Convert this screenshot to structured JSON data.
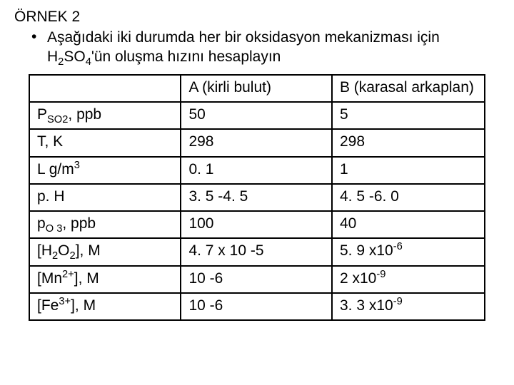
{
  "title": "ÖRNEK 2",
  "bullet": "•",
  "bullet_text_html": "Aşağıdaki iki durumda her bir oksidasyon mekanizması için H<sub>2</sub>SO<sub>4</sub>'ün oluşma hızını hesaplayın",
  "table": {
    "header": [
      "",
      "A (kirli bulut)",
      "B (karasal arkaplan)"
    ],
    "rows": [
      [
        "P<sub>SO2</sub>, ppb",
        "50",
        "5"
      ],
      [
        "T, K",
        "298",
        "298"
      ],
      [
        "L g/m<sup>3</sup>",
        "0. 1",
        "1"
      ],
      [
        "p. H",
        "3. 5 -4. 5",
        "4. 5 -6. 0"
      ],
      [
        "p<sub>O 3</sub>, ppb",
        "100",
        "40"
      ],
      [
        "[H<sub>2</sub>O<sub>2</sub>], M",
        "4. 7 x 10 -5",
        "5. 9 x10<sup>-6</sup>"
      ],
      [
        "[Mn<sup>2+</sup>], M",
        "10 -6",
        "2 x10<sup>-9</sup>"
      ],
      [
        "[Fe<sup>3+</sup>], M",
        "10 -6",
        "3. 3 x10<sup>-9</sup>"
      ]
    ]
  }
}
